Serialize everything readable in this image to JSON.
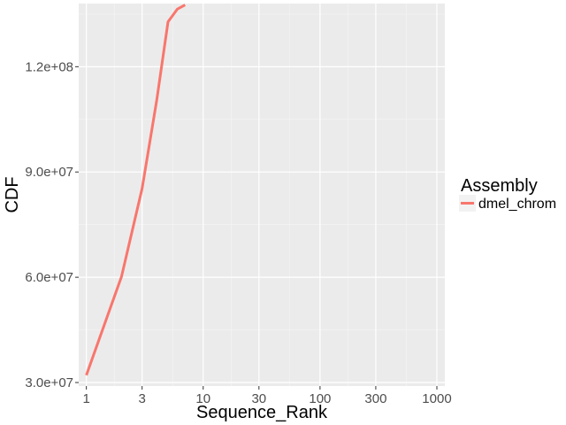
{
  "chart_data": {
    "type": "line",
    "x_scale": "log10",
    "xlabel": "Sequence_Rank",
    "ylabel": "CDF",
    "xlim": [
      0.86,
      1170
    ],
    "ylim": [
      29000000,
      138000000
    ],
    "x_ticks": [
      1,
      3,
      10,
      30,
      100,
      300,
      1000
    ],
    "x_tick_labels": [
      "1",
      "3",
      "10",
      "30",
      "100",
      "300",
      "1000"
    ],
    "y_ticks": [
      30000000,
      60000000,
      90000000,
      120000000
    ],
    "y_tick_labels": [
      "3.0e+07",
      "6.0e+07",
      "9.0e+07",
      "1.2e+08"
    ],
    "grid": true,
    "legend": {
      "title": "Assembly",
      "position": "right"
    },
    "series": [
      {
        "name": "dmel_chrom",
        "color": "#F8766D",
        "x": [
          1,
          2,
          3,
          4,
          5,
          6,
          7
        ],
        "y": [
          32100000,
          60200000,
          85300000,
          110400000,
          132800000,
          136400000,
          137600000
        ]
      }
    ]
  }
}
